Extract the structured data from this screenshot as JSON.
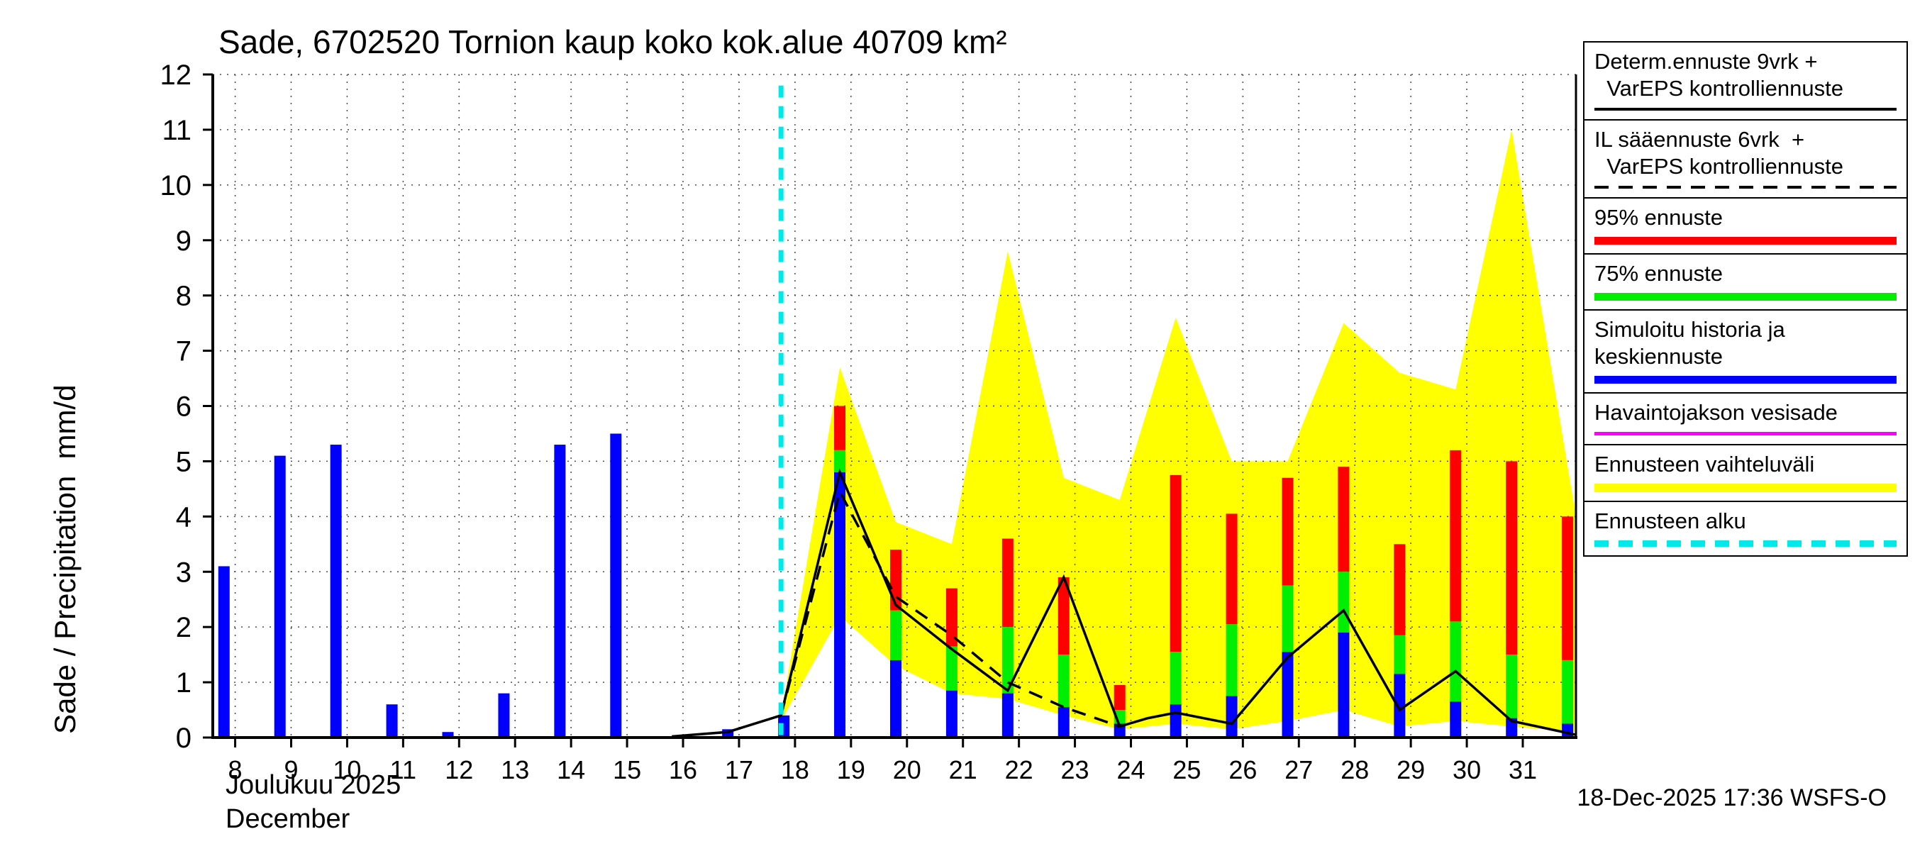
{
  "title": "Sade, 6702520 Tornion kaup koko kok.alue 40709 km²",
  "y_axis": {
    "label": "Sade / Precipitation  mm/d",
    "ticks": [
      0,
      1,
      2,
      3,
      4,
      5,
      6,
      7,
      8,
      9,
      10,
      11,
      12
    ]
  },
  "x_axis": {
    "month_fi": "Joulukuu 2025",
    "month_en": "December",
    "ticks": [
      8,
      9,
      10,
      11,
      12,
      13,
      14,
      15,
      16,
      17,
      18,
      19,
      20,
      21,
      22,
      23,
      24,
      25,
      26,
      27,
      28,
      29,
      30,
      31
    ]
  },
  "footer": {
    "timestamp": "18-Dec-2025 17:36 WSFS-O"
  },
  "colors": {
    "blue": "#0000ff",
    "green": "#00ee00",
    "red": "#ff0000",
    "yellow": "#ffff00",
    "cyan": "#00e9e9",
    "magenta": "#ff00ff",
    "black": "#000000"
  },
  "legend": [
    {
      "lines": [
        "Determ.ennuste 9vrk +",
        "  VarEPS kontrolliennuste"
      ],
      "sample": {
        "name": "determ-line",
        "color": "#000000",
        "height": 4,
        "dashed": false
      }
    },
    {
      "lines": [
        "IL sääennuste 6vrk  +",
        "  VarEPS kontrolliennuste"
      ],
      "sample": {
        "name": "il-line",
        "color": "#000000",
        "height": 4,
        "dashed": true
      }
    },
    {
      "lines": [
        "95% ennuste"
      ],
      "sample": {
        "name": "p95-line",
        "color": "#ff0000",
        "height": 11,
        "dashed": false
      }
    },
    {
      "lines": [
        "75% ennuste"
      ],
      "sample": {
        "name": "p75-line",
        "color": "#00ee00",
        "height": 11,
        "dashed": false
      }
    },
    {
      "lines": [
        "Simuloitu historia ja",
        "keskiennuste"
      ],
      "sample": {
        "name": "simulated-history-line",
        "color": "#0000ff",
        "height": 11,
        "dashed": false
      }
    },
    {
      "lines": [
        "Havaintojakson vesisade"
      ],
      "sample": {
        "name": "observed-rainfall-line",
        "color": "#ff00ff",
        "height": 5,
        "dashed": false
      }
    },
    {
      "lines": [
        "Ennusteen vaihteluväli"
      ],
      "sample": {
        "name": "forecast-range-line",
        "color": "#ffff00",
        "height": 12,
        "dashed": false
      }
    },
    {
      "lines": [
        "Ennusteen alku"
      ],
      "sample": {
        "name": "forecast-start-line",
        "color": "#00e9e9",
        "height": 9,
        "dashed": true
      }
    }
  ],
  "chart_data": {
    "type": "bar",
    "title": "Sade, 6702520 Tornion kaup koko kok.alue 40709 km²",
    "xlabel": "Joulukuu 2025 / December",
    "ylabel": "Sade / Precipitation mm/d",
    "ylim": [
      0,
      12
    ],
    "xlim": [
      7.6,
      31.95
    ],
    "grid": true,
    "bar_offset": -0.2,
    "observed_bars": {
      "name": "Simuloitu historia ja keskiennuste (havaintojakso)",
      "color": "#0000ff",
      "days": [
        8,
        9,
        10,
        11,
        12,
        13,
        14,
        15,
        16,
        17,
        18
      ],
      "values": [
        3.1,
        5.1,
        5.3,
        0.6,
        0.1,
        0.8,
        5.3,
        5.5,
        0,
        0.15,
        0.4
      ]
    },
    "forecast_bars": {
      "days": [
        19,
        20,
        21,
        22,
        23,
        24,
        25,
        26,
        27,
        28,
        29,
        30,
        31,
        32
      ],
      "median_top_blue": [
        4.8,
        1.4,
        0.85,
        0.8,
        0.55,
        0.25,
        0.6,
        0.75,
        1.55,
        1.9,
        1.15,
        0.65,
        0.35,
        0.25
      ],
      "p75_top_green": [
        5.2,
        2.3,
        1.65,
        2.0,
        1.5,
        0.5,
        1.55,
        2.05,
        2.75,
        3.0,
        1.85,
        2.1,
        1.5,
        1.4
      ],
      "p95_top_red": [
        6.0,
        3.4,
        2.7,
        3.6,
        2.9,
        0.95,
        4.75,
        4.05,
        4.7,
        4.9,
        3.5,
        5.2,
        5.0,
        4.0
      ]
    },
    "range_band": {
      "name": "Ennusteen vaihteluväli",
      "color": "#ffff00",
      "x": [
        17.75,
        18.8,
        19.8,
        20.8,
        21.8,
        22.8,
        23.8,
        24.8,
        25.8,
        26.8,
        27.8,
        28.8,
        29.8,
        30.8,
        31.95
      ],
      "upper": [
        0.4,
        6.7,
        3.9,
        3.5,
        8.8,
        4.7,
        4.3,
        7.6,
        5.0,
        5.0,
        7.5,
        6.6,
        6.3,
        11.0,
        4.0
      ],
      "lower": [
        0.3,
        2.2,
        1.3,
        0.8,
        0.7,
        0.4,
        0.15,
        0.25,
        0.15,
        0.3,
        0.5,
        0.2,
        0.3,
        0.2,
        0.1
      ]
    },
    "determ_line": {
      "name": "Determ.ennuste 9vrk + VarEPS kontrolliennuste",
      "style": "solid",
      "color": "#000000",
      "x": [
        15.8,
        16.8,
        17.75,
        18.8,
        19.8,
        20.8,
        21.8,
        22.8,
        23.8,
        24.3,
        24.8,
        25.8,
        26.8,
        27.8,
        28.8,
        29.8,
        30.8,
        31.95
      ],
      "y": [
        0.02,
        0.1,
        0.4,
        4.8,
        2.4,
        1.6,
        0.85,
        2.9,
        0.2,
        0.35,
        0.45,
        0.25,
        1.45,
        2.3,
        0.5,
        1.2,
        0.3,
        0.05
      ]
    },
    "il_line": {
      "name": "IL sääennuste 6vrk + VarEPS kontrolliennuste",
      "style": "dashed",
      "color": "#000000",
      "x": [
        17.75,
        18.8,
        19.8,
        20.8,
        21.8,
        22.8,
        23.8
      ],
      "y": [
        0.4,
        4.45,
        2.55,
        1.85,
        1.0,
        0.55,
        0.2
      ]
    },
    "forecast_start_line": {
      "name": "Ennusteen alku",
      "x": 17.75,
      "color": "#00e9e9",
      "style": "dashed"
    }
  }
}
